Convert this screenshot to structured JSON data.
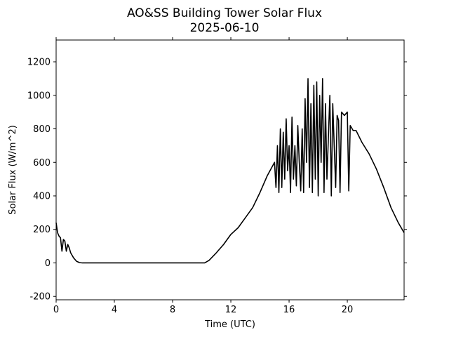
{
  "chart_data": {
    "type": "line",
    "title": "AO&SS Building Tower Solar Flux",
    "subtitle": "2025-06-10",
    "xlabel": "Time (UTC)",
    "ylabel": "Solar Flux (W/m^2)",
    "xlim": [
      0,
      23.9
    ],
    "xticks": [
      0,
      4,
      8,
      12,
      16,
      20
    ],
    "ylim": [
      -220,
      1330
    ],
    "yticks": [
      -200,
      0,
      200,
      400,
      600,
      800,
      1000,
      1200
    ],
    "grid": false,
    "series": [
      {
        "color": "#000000",
        "x": [
          0,
          0.1,
          0.2,
          0.3,
          0.4,
          0.5,
          0.6,
          0.7,
          0.8,
          0.9,
          1.0,
          1.2,
          1.4,
          1.6,
          1.8,
          10.2,
          10.5,
          11,
          11.5,
          12,
          12.5,
          13,
          13.5,
          14,
          14.5,
          15,
          15.1,
          15.2,
          15.3,
          15.4,
          15.5,
          15.6,
          15.7,
          15.8,
          15.9,
          16,
          16.1,
          16.2,
          16.3,
          16.4,
          16.5,
          16.6,
          16.7,
          16.8,
          16.9,
          17.0,
          17.1,
          17.2,
          17.3,
          17.4,
          17.5,
          17.6,
          17.7,
          17.8,
          17.9,
          18.0,
          18.1,
          18.2,
          18.3,
          18.4,
          18.5,
          18.6,
          18.8,
          18.9,
          19.0,
          19.2,
          19.3,
          19.4,
          19.5,
          19.6,
          19.8,
          20.0,
          20.1,
          20.2,
          20.4,
          20.6,
          21,
          21.5,
          22,
          22.5,
          23,
          23.5,
          23.9
        ],
        "values": [
          240,
          180,
          160,
          150,
          70,
          140,
          130,
          70,
          110,
          90,
          60,
          30,
          10,
          2,
          0,
          0,
          15,
          60,
          110,
          170,
          210,
          270,
          330,
          420,
          520,
          600,
          450,
          700,
          420,
          800,
          450,
          780,
          500,
          860,
          550,
          700,
          420,
          870,
          500,
          700,
          460,
          820,
          600,
          430,
          800,
          420,
          980,
          600,
          1100,
          450,
          950,
          420,
          1060,
          500,
          1080,
          400,
          1000,
          600,
          1100,
          420,
          950,
          500,
          1000,
          400,
          950,
          450,
          880,
          850,
          420,
          900,
          880,
          900,
          430,
          820,
          790,
          790,
          720,
          650,
          560,
          450,
          330,
          240,
          180
        ]
      }
    ]
  }
}
